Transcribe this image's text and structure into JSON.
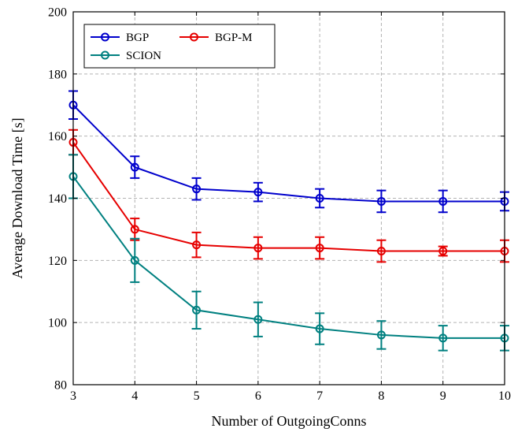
{
  "chart_data": {
    "type": "line",
    "xlabel": "Number of OutgoingConns",
    "ylabel": "Average Download Time [s]",
    "xlim": [
      3,
      10
    ],
    "ylim": [
      80,
      200
    ],
    "x": [
      3,
      4,
      5,
      6,
      7,
      8,
      9,
      10
    ],
    "xticks": [
      "3",
      "4",
      "5",
      "6",
      "7",
      "8",
      "9",
      "10"
    ],
    "yticks": [
      "80",
      "100",
      "120",
      "140",
      "160",
      "180",
      "200"
    ],
    "grid": true,
    "legend_position": "top-left",
    "series": [
      {
        "name": "BGP",
        "color": "#0000cc",
        "values": [
          170,
          150,
          143,
          142,
          140,
          139,
          139,
          139
        ],
        "err_low": [
          165.5,
          146.5,
          139.5,
          139,
          137,
          135.5,
          135.5,
          136
        ],
        "err_high": [
          174.5,
          153.5,
          146.5,
          145,
          143,
          142.5,
          142.5,
          142
        ]
      },
      {
        "name": "BGP-M",
        "color": "#e60000",
        "values": [
          158,
          130,
          125,
          124,
          124,
          123,
          123,
          123
        ],
        "err_low": [
          154,
          126.5,
          121,
          120.5,
          120.5,
          119.5,
          121.5,
          119.5
        ],
        "err_high": [
          162,
          133.5,
          129,
          127.5,
          127.5,
          126.5,
          124.5,
          126.5
        ]
      },
      {
        "name": "SCION",
        "color": "#008080",
        "values": [
          147,
          120,
          104,
          101,
          98,
          96,
          95,
          95
        ],
        "err_low": [
          140,
          113,
          98,
          95.5,
          93,
          91.5,
          91,
          91
        ],
        "err_high": [
          154,
          127,
          110,
          106.5,
          103,
          100.5,
          99,
          99
        ]
      }
    ]
  }
}
